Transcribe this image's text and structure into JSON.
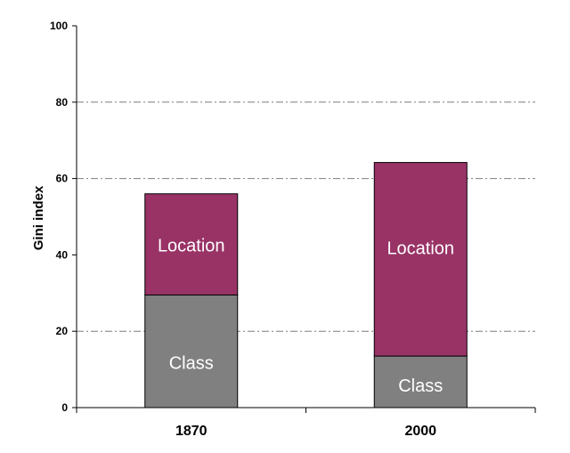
{
  "chart_data": {
    "type": "bar",
    "stacked": true,
    "title": "",
    "xlabel": "",
    "ylabel": "Gini index",
    "ylim": [
      0,
      100
    ],
    "yticks": [
      0,
      20,
      40,
      60,
      80,
      100
    ],
    "grid": "horizontal dash-dot at 20, 60, 80",
    "categories": [
      "1870",
      "2000"
    ],
    "series": [
      {
        "name": "Class",
        "values": [
          29.5,
          13.5
        ],
        "color": "#808080"
      },
      {
        "name": "Location",
        "values": [
          26.5,
          50.7
        ],
        "color": "#993366"
      }
    ]
  }
}
